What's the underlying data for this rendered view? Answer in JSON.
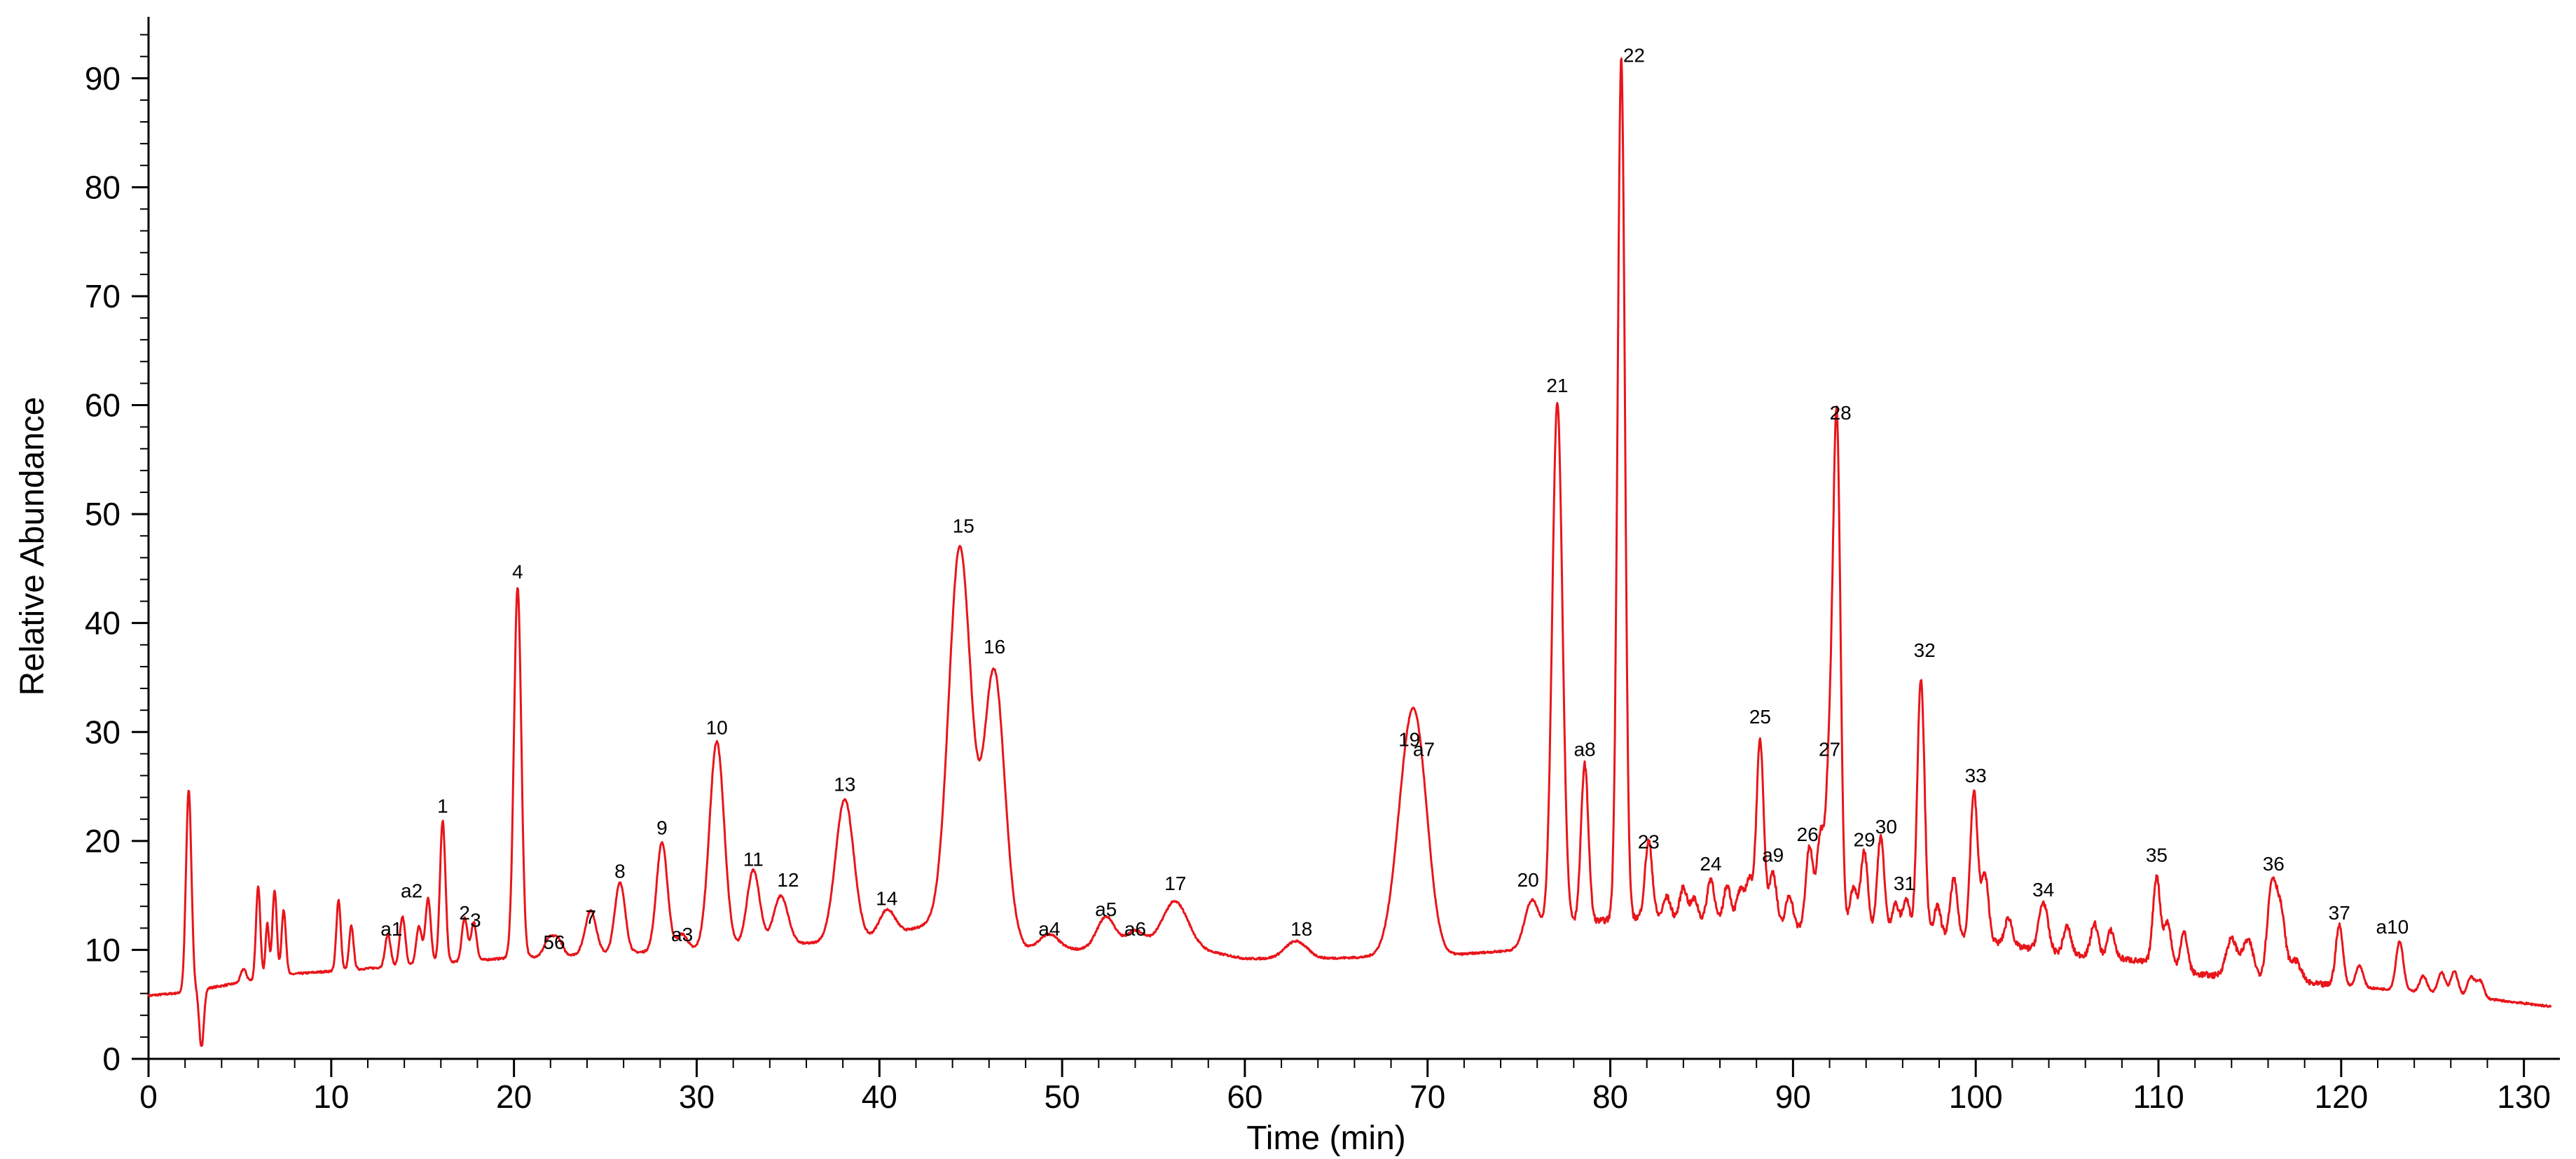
{
  "chart_data": {
    "type": "line",
    "xlabel": "Time (min)",
    "ylabel": "Relative Abundance",
    "xlim": [
      0,
      132
    ],
    "ylim": [
      0,
      95
    ],
    "xticks": [
      "0",
      "10",
      "20",
      "30",
      "40",
      "50",
      "60",
      "70",
      "80",
      "90",
      "100",
      "110",
      "120",
      "130"
    ],
    "yticks": [
      "0",
      "10",
      "20",
      "30",
      "40",
      "50",
      "60",
      "70",
      "80",
      "90"
    ],
    "grid": false,
    "line_color": "#e8151b",
    "baseline": [
      [
        0,
        5.8
      ],
      [
        2,
        6.1
      ],
      [
        5,
        7.0
      ],
      [
        8,
        7.8
      ],
      [
        12,
        8.3
      ],
      [
        16,
        8.8
      ],
      [
        20,
        9.3
      ],
      [
        24,
        9.6
      ],
      [
        30,
        10.0
      ],
      [
        36,
        10.6
      ],
      [
        40,
        11.0
      ],
      [
        43,
        12.5
      ],
      [
        46,
        13.5
      ],
      [
        48,
        10.2
      ],
      [
        52,
        10.0
      ],
      [
        56,
        10.5
      ],
      [
        60,
        9.2
      ],
      [
        64,
        9.2
      ],
      [
        68,
        9.4
      ],
      [
        71,
        9.5
      ],
      [
        75,
        10.0
      ],
      [
        78,
        12.5
      ],
      [
        82,
        13.0
      ],
      [
        86,
        12.5
      ],
      [
        90,
        12.0
      ],
      [
        94,
        11.5
      ],
      [
        97,
        11.0
      ],
      [
        100,
        11.0
      ],
      [
        104,
        9.8
      ],
      [
        108,
        9.2
      ],
      [
        110,
        8.7
      ],
      [
        112,
        7.8
      ],
      [
        116,
        7.2
      ],
      [
        120,
        6.7
      ],
      [
        124,
        6.2
      ],
      [
        128,
        5.5
      ],
      [
        131.5,
        4.8
      ]
    ],
    "series": [
      {
        "values": [
          [
            2.2,
            18.5,
            0.15
          ],
          [
            2.9,
            -5.5,
            0.12
          ],
          [
            5.2,
            1.2,
            0.15
          ],
          [
            6.0,
            8.5,
            0.12
          ],
          [
            6.5,
            5.0,
            0.1
          ],
          [
            6.9,
            8.0,
            0.12
          ],
          [
            7.4,
            6.0,
            0.12
          ],
          [
            10.4,
            6.5,
            0.12
          ],
          [
            11.1,
            4.0,
            0.12
          ],
          [
            13.1,
            3.0,
            0.15
          ],
          [
            13.9,
            4.5,
            0.15
          ],
          [
            14.8,
            3.5,
            0.15
          ],
          [
            15.3,
            6.0,
            0.15
          ],
          [
            16.1,
            13.0,
            0.15
          ],
          [
            17.3,
            4.0,
            0.15
          ],
          [
            17.8,
            3.5,
            0.15
          ],
          [
            20.2,
            34.0,
            0.2
          ],
          [
            21.9,
            1.5,
            0.25
          ],
          [
            22.4,
            1.5,
            0.25
          ],
          [
            24.2,
            4.0,
            0.3
          ],
          [
            25.8,
            6.5,
            0.28
          ],
          [
            28.1,
            10.0,
            0.3
          ],
          [
            29.2,
            1.5,
            0.3
          ],
          [
            31.1,
            19.0,
            0.4
          ],
          [
            33.1,
            7.0,
            0.35
          ],
          [
            34.6,
            4.5,
            0.4
          ],
          [
            38.1,
            13.0,
            0.5
          ],
          [
            40.4,
            2.5,
            0.45
          ],
          [
            44.4,
            34.0,
            0.6
          ],
          [
            46.3,
            22.5,
            0.55
          ],
          [
            49.3,
            1.3,
            0.5
          ],
          [
            52.4,
            3.0,
            0.5
          ],
          [
            54.0,
            1.5,
            0.5
          ],
          [
            56.2,
            4.0,
            0.7
          ],
          [
            62.8,
            1.6,
            0.6
          ],
          [
            69.0,
            17.0,
            0.7
          ],
          [
            69.6,
            8.0,
            0.6
          ],
          [
            75.7,
            4.0,
            0.4
          ],
          [
            77.1,
            48.5,
            0.28
          ],
          [
            78.6,
            14.5,
            0.2
          ],
          [
            80.6,
            79.0,
            0.2
          ],
          [
            82.1,
            7.0,
            0.2
          ],
          [
            83.1,
            2.0,
            0.2
          ],
          [
            84.0,
            3.0,
            0.2
          ],
          [
            84.6,
            2.0,
            0.2
          ],
          [
            85.5,
            4.0,
            0.2
          ],
          [
            86.4,
            3.5,
            0.2
          ],
          [
            87.1,
            3.0,
            0.2
          ],
          [
            87.6,
            4.0,
            0.2
          ],
          [
            88.2,
            17.0,
            0.2
          ],
          [
            88.9,
            5.0,
            0.2
          ],
          [
            89.8,
            3.0,
            0.2
          ],
          [
            90.9,
            7.5,
            0.2
          ],
          [
            91.5,
            8.5,
            0.2
          ],
          [
            92.0,
            14.5,
            0.2
          ],
          [
            92.4,
            46.0,
            0.2
          ],
          [
            93.3,
            4.0,
            0.2
          ],
          [
            93.9,
            7.5,
            0.2
          ],
          [
            94.8,
            9.0,
            0.2
          ],
          [
            95.6,
            3.0,
            0.2
          ],
          [
            96.2,
            3.5,
            0.2
          ],
          [
            97.0,
            24.0,
            0.2
          ],
          [
            97.9,
            3.0,
            0.2
          ],
          [
            98.8,
            5.5,
            0.2
          ],
          [
            99.9,
            13.5,
            0.2
          ],
          [
            100.5,
            6.0,
            0.2
          ],
          [
            101.8,
            2.5,
            0.2
          ],
          [
            103.7,
            4.5,
            0.25
          ],
          [
            105.0,
            2.5,
            0.2
          ],
          [
            106.5,
            3.0,
            0.2
          ],
          [
            107.4,
            2.5,
            0.2
          ],
          [
            109.9,
            8.0,
            0.2
          ],
          [
            110.5,
            4.0,
            0.2
          ],
          [
            111.4,
            3.5,
            0.2
          ],
          [
            114.0,
            3.5,
            0.3
          ],
          [
            114.9,
            3.5,
            0.3
          ],
          [
            116.2,
            8.5,
            0.25
          ],
          [
            116.7,
            6.0,
            0.25
          ],
          [
            117.5,
            2.0,
            0.3
          ],
          [
            119.9,
            5.5,
            0.2
          ],
          [
            121.0,
            2.0,
            0.2
          ],
          [
            123.2,
            4.5,
            0.2
          ],
          [
            124.5,
            1.5,
            0.2
          ],
          [
            125.5,
            2.0,
            0.2
          ],
          [
            126.2,
            2.2,
            0.2
          ],
          [
            127.1,
            1.8,
            0.2
          ],
          [
            127.6,
            1.6,
            0.2
          ]
        ]
      }
    ],
    "annotations": [
      {
        "label": "a1",
        "x": 13.3,
        "y": 11.3
      },
      {
        "label": "a2",
        "x": 14.4,
        "y": 14.8
      },
      {
        "label": "1",
        "x": 16.1,
        "y": 22.6
      },
      {
        "label": "2",
        "x": 17.3,
        "y": 12.8
      },
      {
        "label": "3",
        "x": 17.9,
        "y": 12.1
      },
      {
        "label": "4",
        "x": 20.2,
        "y": 44.1
      },
      {
        "label": "5",
        "x": 21.9,
        "y": 10.1
      },
      {
        "label": "6",
        "x": 22.5,
        "y": 10.1
      },
      {
        "label": "7",
        "x": 24.2,
        "y": 12.4
      },
      {
        "label": "8",
        "x": 25.8,
        "y": 16.6
      },
      {
        "label": "9",
        "x": 28.1,
        "y": 20.6
      },
      {
        "label": "a3",
        "x": 29.2,
        "y": 10.8
      },
      {
        "label": "10",
        "x": 31.1,
        "y": 29.8
      },
      {
        "label": "11",
        "x": 33.1,
        "y": 17.7
      },
      {
        "label": "12",
        "x": 35.0,
        "y": 15.8
      },
      {
        "label": "13",
        "x": 38.1,
        "y": 24.6
      },
      {
        "label": "14",
        "x": 40.4,
        "y": 14.1
      },
      {
        "label": "15",
        "x": 44.6,
        "y": 48.3
      },
      {
        "label": "16",
        "x": 46.3,
        "y": 37.2
      },
      {
        "label": "a4",
        "x": 49.3,
        "y": 11.3
      },
      {
        "label": "a5",
        "x": 52.4,
        "y": 13.1
      },
      {
        "label": "a6",
        "x": 54.0,
        "y": 11.3
      },
      {
        "label": "17",
        "x": 56.2,
        "y": 15.5
      },
      {
        "label": "18",
        "x": 63.1,
        "y": 11.3
      },
      {
        "label": "19",
        "x": 69.0,
        "y": 28.7
      },
      {
        "label": "a7",
        "x": 69.8,
        "y": 27.8
      },
      {
        "label": "20",
        "x": 75.5,
        "y": 15.8
      },
      {
        "label": "21",
        "x": 77.1,
        "y": 61.2
      },
      {
        "label": "a8",
        "x": 78.6,
        "y": 27.8
      },
      {
        "label": "22",
        "x": 81.3,
        "y": 91.5
      },
      {
        "label": "23",
        "x": 82.1,
        "y": 19.3
      },
      {
        "label": "24",
        "x": 85.5,
        "y": 17.3
      },
      {
        "label": "25",
        "x": 88.2,
        "y": 30.8
      },
      {
        "label": "a9",
        "x": 88.9,
        "y": 18.1
      },
      {
        "label": "26",
        "x": 90.8,
        "y": 20.0
      },
      {
        "label": "27",
        "x": 92.0,
        "y": 27.8
      },
      {
        "label": "28",
        "x": 92.6,
        "y": 58.7
      },
      {
        "label": "29",
        "x": 93.9,
        "y": 19.5
      },
      {
        "label": "30",
        "x": 95.1,
        "y": 20.7
      },
      {
        "label": "31",
        "x": 96.1,
        "y": 15.5
      },
      {
        "label": "32",
        "x": 97.2,
        "y": 36.9
      },
      {
        "label": "33",
        "x": 100.0,
        "y": 25.4
      },
      {
        "label": "34",
        "x": 103.7,
        "y": 14.9
      },
      {
        "label": "35",
        "x": 109.9,
        "y": 18.1
      },
      {
        "label": "36",
        "x": 116.3,
        "y": 17.3
      },
      {
        "label": "37",
        "x": 119.9,
        "y": 12.8
      },
      {
        "label": "a10",
        "x": 122.8,
        "y": 11.5
      }
    ]
  }
}
